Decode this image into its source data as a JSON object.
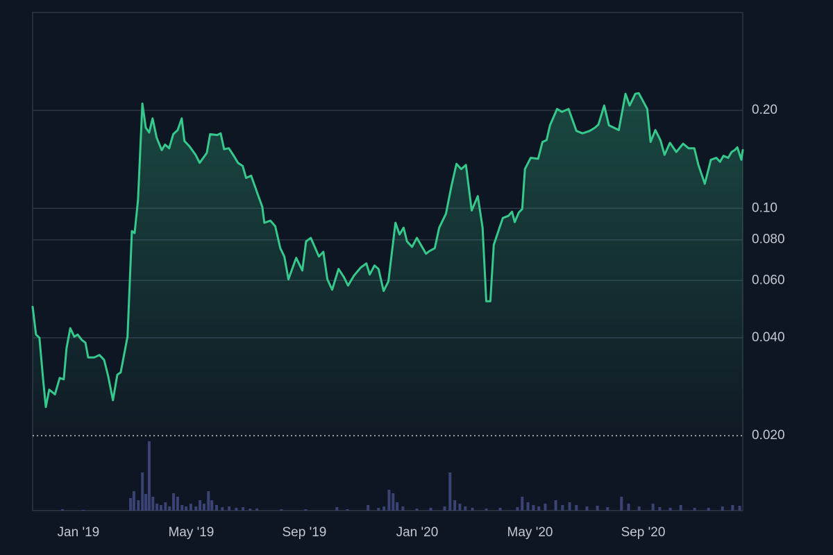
{
  "chart_data": {
    "type": "line",
    "yscale": "log",
    "grid": true,
    "xlim": [
      2018.865,
      2020.961
    ],
    "xticks": [
      {
        "value": 2019,
        "label": "Jan '19"
      },
      {
        "value": 2019.333,
        "label": "May '19"
      },
      {
        "value": 2019.667,
        "label": "Sep '19"
      },
      {
        "value": 2020,
        "label": "Jan '20"
      },
      {
        "value": 2020.333,
        "label": "May '20"
      },
      {
        "value": 2020.667,
        "label": "Sep '20"
      }
    ],
    "ylim": [
      0.02,
      0.4
    ],
    "yticks": [
      {
        "value": 0.02,
        "label": "0.020"
      },
      {
        "value": 0.04,
        "label": "0.040"
      },
      {
        "value": 0.06,
        "label": "0.060"
      },
      {
        "value": 0.08,
        "label": "0.080"
      },
      {
        "value": 0.1,
        "label": "0.10"
      },
      {
        "value": 0.2,
        "label": "0.20"
      }
    ],
    "x": [
      2018.865,
      2018.875,
      2018.885,
      2018.896,
      2018.904,
      2018.914,
      2018.931,
      2018.945,
      2018.957,
      2018.965,
      2018.976,
      2018.988,
      2018.998,
      2019.01,
      2019.021,
      2019.029,
      2019.047,
      2019.062,
      2019.076,
      2019.088,
      2019.102,
      2019.115,
      2019.125,
      2019.145,
      2019.158,
      2019.166,
      2019.176,
      2019.189,
      2019.199,
      2019.209,
      2019.219,
      2019.231,
      2019.246,
      2019.256,
      2019.268,
      2019.28,
      2019.293,
      2019.305,
      2019.313,
      2019.328,
      2019.346,
      2019.358,
      2019.379,
      2019.389,
      2019.41,
      2019.42,
      2019.43,
      2019.444,
      2019.457,
      2019.471,
      2019.485,
      2019.495,
      2019.51,
      2019.53,
      2019.543,
      2019.549,
      2019.567,
      2019.581,
      2019.596,
      2019.608,
      2019.62,
      2019.643,
      2019.661,
      2019.672,
      2019.686,
      2019.71,
      2019.723,
      2019.735,
      2019.749,
      2019.768,
      2019.784,
      2019.796,
      2019.813,
      2019.833,
      2019.85,
      2019.86,
      2019.874,
      2019.886,
      2019.901,
      2019.915,
      2019.936,
      2019.948,
      2019.96,
      2019.97,
      2019.985,
      2019.999,
      2020.026,
      2020.036,
      2020.052,
      2020.065,
      2020.085,
      2020.101,
      2020.116,
      2020.13,
      2020.144,
      2020.161,
      2020.179,
      2020.193,
      2020.204,
      2020.216,
      2020.226,
      2020.243,
      2020.253,
      2020.269,
      2020.28,
      2020.288,
      2020.3,
      2020.31,
      2020.318,
      2020.335,
      2020.357,
      2020.37,
      2020.382,
      2020.392,
      2020.413,
      2020.427,
      2020.447,
      2020.47,
      2020.488,
      2020.509,
      2020.525,
      2020.535,
      2020.552,
      2020.566,
      2020.595,
      2020.615,
      2020.627,
      2020.644,
      2020.654,
      2020.679,
      2020.689,
      2020.703,
      2020.718,
      2020.73,
      2020.746,
      2020.765,
      2020.785,
      2020.801,
      2020.818,
      2020.83,
      2020.849,
      2020.867,
      2020.883,
      2020.894,
      2020.904,
      2020.918,
      2020.928,
      2020.937,
      2020.945,
      2020.957,
      2020.961
    ],
    "series": [
      {
        "color": "#36c98c",
        "values": [
          0.0498,
          0.0409,
          0.04,
          0.0298,
          0.0245,
          0.0277,
          0.0268,
          0.0301,
          0.0298,
          0.0371,
          0.0428,
          0.0403,
          0.0409,
          0.0394,
          0.0386,
          0.0348,
          0.0348,
          0.0354,
          0.0342,
          0.0305,
          0.0257,
          0.0308,
          0.0313,
          0.0403,
          0.0851,
          0.0839,
          0.106,
          0.21,
          0.177,
          0.171,
          0.189,
          0.165,
          0.151,
          0.157,
          0.153,
          0.169,
          0.174,
          0.189,
          0.161,
          0.155,
          0.146,
          0.138,
          0.148,
          0.169,
          0.168,
          0.17,
          0.152,
          0.153,
          0.146,
          0.138,
          0.135,
          0.124,
          0.126,
          0.11,
          0.101,
          0.0903,
          0.0916,
          0.0881,
          0.0754,
          0.0711,
          0.0605,
          0.0704,
          0.0644,
          0.0791,
          0.0811,
          0.0711,
          0.0735,
          0.0605,
          0.0562,
          0.0651,
          0.0614,
          0.0579,
          0.062,
          0.0657,
          0.0677,
          0.0626,
          0.0667,
          0.0651,
          0.0557,
          0.0596,
          0.0903,
          0.0831,
          0.0872,
          0.0791,
          0.0761,
          0.0811,
          0.0725,
          0.0739,
          0.0754,
          0.0872,
          0.0962,
          0.117,
          0.137,
          0.132,
          0.136,
          0.0985,
          0.109,
          0.0872,
          0.0518,
          0.0518,
          0.0772,
          0.0872,
          0.0934,
          0.0948,
          0.0976,
          0.0907,
          0.0971,
          0.0995,
          0.132,
          0.143,
          0.142,
          0.16,
          0.162,
          0.18,
          0.202,
          0.198,
          0.202,
          0.173,
          0.17,
          0.173,
          0.177,
          0.181,
          0.207,
          0.18,
          0.174,
          0.225,
          0.207,
          0.225,
          0.226,
          0.202,
          0.16,
          0.174,
          0.162,
          0.146,
          0.159,
          0.149,
          0.158,
          0.153,
          0.153,
          0.136,
          0.119,
          0.141,
          0.143,
          0.139,
          0.145,
          0.143,
          0.149,
          0.151,
          0.154,
          0.141,
          0.151
        ]
      }
    ],
    "volume": {
      "color": "#3a4373",
      "x": [
        2018.953,
        2019.015,
        2019.154,
        2019.164,
        2019.177,
        2019.189,
        2019.199,
        2019.209,
        2019.22,
        2019.232,
        2019.244,
        2019.257,
        2019.269,
        2019.281,
        2019.293,
        2019.306,
        2019.318,
        2019.332,
        2019.347,
        2019.359,
        2019.371,
        2019.384,
        2019.394,
        2019.408,
        2019.425,
        2019.445,
        2019.466,
        2019.486,
        2019.507,
        2019.527,
        2019.599,
        2019.671,
        2019.763,
        2019.794,
        2019.855,
        2019.886,
        2019.902,
        2019.917,
        2019.929,
        2019.941,
        2019.958,
        2019.999,
        2020.04,
        2020.081,
        2020.097,
        2020.111,
        2020.126,
        2020.142,
        2020.163,
        2020.204,
        2020.245,
        2020.296,
        2020.31,
        2020.327,
        2020.343,
        2020.359,
        2020.378,
        2020.409,
        2020.429,
        2020.45,
        2020.47,
        2020.501,
        2020.532,
        2020.562,
        2020.603,
        2020.624,
        2020.655,
        2020.696,
        2020.716,
        2020.747,
        2020.778,
        2020.819,
        2020.86,
        2020.901,
        2020.931,
        2020.952
      ],
      "values": [
        2,
        1,
        18,
        28,
        15,
        55,
        24,
        100,
        20,
        10,
        8,
        12,
        6,
        25,
        20,
        8,
        6,
        10,
        6,
        15,
        10,
        28,
        15,
        8,
        5,
        6,
        4,
        5,
        3,
        3,
        2,
        2,
        5,
        2,
        8,
        4,
        6,
        30,
        25,
        12,
        6,
        3,
        4,
        6,
        55,
        15,
        10,
        6,
        4,
        3,
        4,
        5,
        20,
        12,
        8,
        6,
        10,
        15,
        8,
        12,
        8,
        6,
        7,
        5,
        20,
        10,
        6,
        10,
        5,
        4,
        8,
        4,
        4,
        6,
        8,
        7
      ]
    }
  }
}
